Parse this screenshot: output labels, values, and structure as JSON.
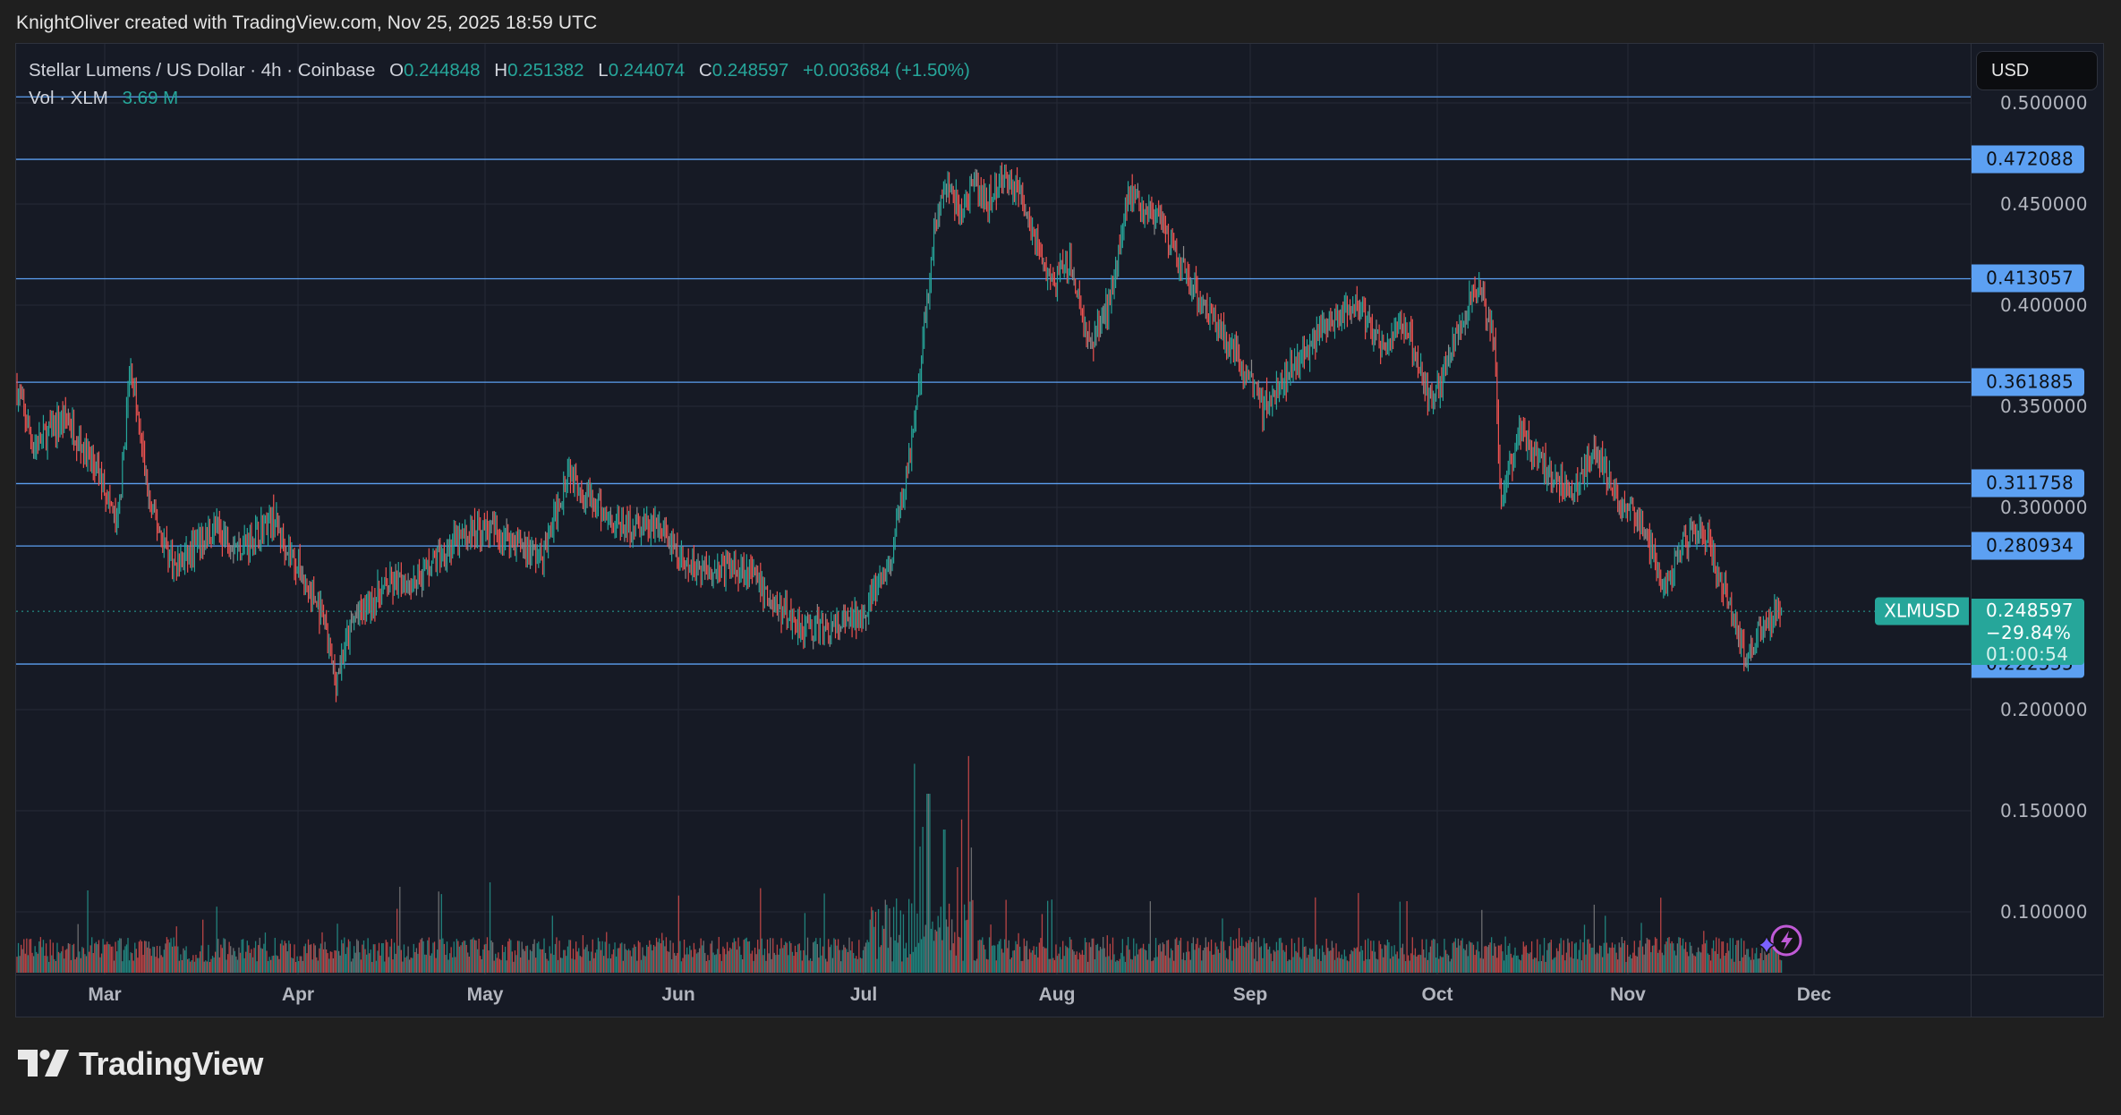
{
  "attribution": "KnightOliver created with TradingView.com, Nov 25, 2025 18:59 UTC",
  "legend": {
    "symbol_desc": "Stellar Lumens / US Dollar · 4h · Coinbase",
    "o_label": "O",
    "o": "0.244848",
    "h_label": "H",
    "h": "0.251382",
    "l_label": "L",
    "l": "0.244074",
    "c_label": "C",
    "c": "0.248597",
    "change": "+0.003684 (+1.50%)",
    "vol_label": "Vol · XLM",
    "vol_value": "3.69 M"
  },
  "currency_button": "USD",
  "price_axis": {
    "ticks": [
      "0.500000",
      "0.450000",
      "0.400000",
      "0.350000",
      "0.300000",
      "0.200000",
      "0.150000",
      "0.100000"
    ],
    "horizontal_levels": [
      "0.472088",
      "0.413057",
      "0.361885",
      "0.311758",
      "0.280934",
      "0.222535"
    ],
    "top_line": "0.503"
  },
  "last_price": {
    "symbol": "XLMUSD",
    "price": "0.248597",
    "change_pct": "−29.84%",
    "countdown": "01:00:54"
  },
  "time_axis": {
    "months": [
      "Mar",
      "Apr",
      "May",
      "Jun",
      "Jul",
      "Aug",
      "Sep",
      "Oct",
      "Nov",
      "Dec"
    ]
  },
  "brand": {
    "name": "TradingView"
  },
  "colors": {
    "up": "#26a69a",
    "down": "#ef5350",
    "neutral": "#8a8a8a",
    "level_line": "#5ca0f2",
    "background": "#161a25",
    "grid": "#252a36"
  },
  "chart_data": {
    "type": "candlestick",
    "title": "Stellar Lumens / US Dollar · 4h · Coinbase",
    "symbol": "XLMUSD",
    "interval": "4h",
    "xlabel": "",
    "ylabel": "USD",
    "ylim": [
      0.07,
      0.52
    ],
    "x_ticks": [
      "Mar",
      "Apr",
      "May",
      "Jun",
      "Jul",
      "Aug",
      "Sep",
      "Oct",
      "Nov",
      "Dec"
    ],
    "y_ticks": [
      0.1,
      0.15,
      0.2,
      0.3,
      0.35,
      0.4,
      0.45,
      0.5
    ],
    "grid": true,
    "horizontal_lines": [
      0.503,
      0.472088,
      0.413057,
      0.361885,
      0.311758,
      0.280934,
      0.222535
    ],
    "last": {
      "open": 0.244848,
      "high": 0.251382,
      "low": 0.244074,
      "close": 0.248597,
      "change": 0.003684,
      "change_pct": 1.5
    },
    "approx_close_path": {
      "dates": [
        "Feb 15",
        "Feb 20",
        "Feb 25",
        "Mar 1",
        "Mar 3",
        "Mar 5",
        "Mar 8",
        "Mar 12",
        "Mar 18",
        "Mar 22",
        "Mar 27",
        "Apr 1",
        "Apr 5",
        "Apr 7",
        "Apr 10",
        "Apr 15",
        "Apr 20",
        "Apr 25",
        "Apr 30",
        "May 5",
        "May 10",
        "May 14",
        "May 18",
        "May 23",
        "May 28",
        "Jun 2",
        "Jun 7",
        "Jun 12",
        "Jun 17",
        "Jun 22",
        "Jun 26",
        "Jun 30",
        "Jul 5",
        "Jul 9",
        "Jul 12",
        "Jul 14",
        "Jul 16",
        "Jul 18",
        "Jul 20",
        "Jul 23",
        "Jul 26",
        "Jul 30",
        "Aug 3",
        "Aug 6",
        "Aug 9",
        "Aug 12",
        "Aug 16",
        "Aug 20",
        "Aug 25",
        "Aug 29",
        "Sep 3",
        "Sep 8",
        "Sep 13",
        "Sep 18",
        "Sep 22",
        "Sep 26",
        "Sep 30",
        "Oct 3",
        "Oct 7",
        "Oct 10",
        "Oct 11",
        "Oct 14",
        "Oct 18",
        "Oct 22",
        "Oct 26",
        "Oct 30",
        "Nov 3",
        "Nov 7",
        "Nov 10",
        "Nov 13",
        "Nov 17",
        "Nov 20",
        "Nov 22",
        "Nov 25"
      ],
      "close": [
        0.36,
        0.33,
        0.345,
        0.31,
        0.29,
        0.37,
        0.3,
        0.27,
        0.29,
        0.28,
        0.295,
        0.27,
        0.245,
        0.215,
        0.245,
        0.26,
        0.265,
        0.28,
        0.29,
        0.285,
        0.275,
        0.32,
        0.3,
        0.29,
        0.29,
        0.27,
        0.27,
        0.27,
        0.25,
        0.24,
        0.24,
        0.245,
        0.27,
        0.34,
        0.44,
        0.46,
        0.445,
        0.46,
        0.45,
        0.465,
        0.45,
        0.41,
        0.42,
        0.38,
        0.4,
        0.455,
        0.445,
        0.42,
        0.395,
        0.375,
        0.35,
        0.37,
        0.39,
        0.4,
        0.38,
        0.39,
        0.35,
        0.375,
        0.41,
        0.385,
        0.3,
        0.34,
        0.32,
        0.305,
        0.33,
        0.3,
        0.295,
        0.26,
        0.285,
        0.29,
        0.255,
        0.225,
        0.24,
        0.2486
      ]
    },
    "volume": {
      "label": "Vol · XLM",
      "last": "3.69 M",
      "peak_period": "Jul 10 – Jul 20",
      "notable_spikes": [
        "Mar 2",
        "May 15",
        "Jul 14",
        "Aug 11",
        "Oct 11",
        "Nov 10"
      ]
    }
  }
}
